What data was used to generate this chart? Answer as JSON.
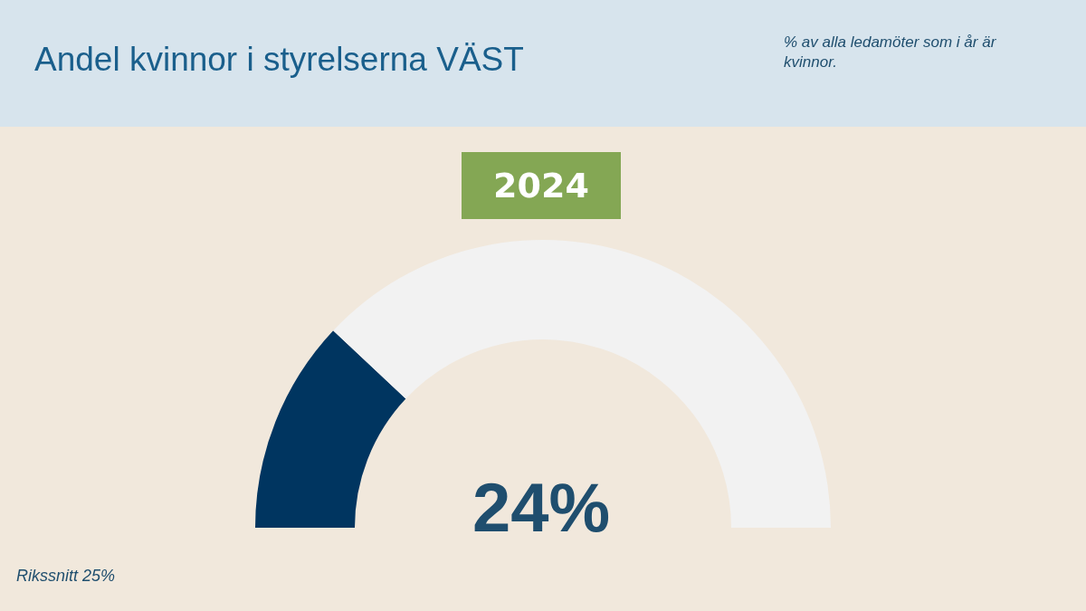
{
  "chart_data": {
    "type": "donut",
    "title": "Andel kvinnor i styrelserna VÄST",
    "subtitle": "% av alla ledamöter som i år är kvinnor.",
    "categories": [
      null,
      null
    ],
    "values": [
      24,
      76
    ],
    "colors": [
      "#003560",
      "#f2f2f2"
    ],
    "annotations": [
      "2024",
      "24%",
      "Rikssnitt 25%"
    ]
  }
}
